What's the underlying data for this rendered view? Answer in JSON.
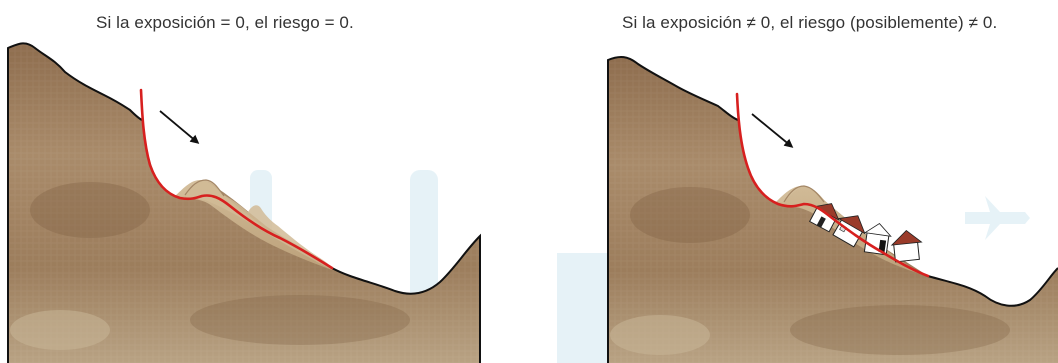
{
  "captions": {
    "left": "Si la exposición = 0, el riesgo = 0.",
    "right": "Si la exposición ≠ 0, el riesgo (posiblemente) ≠ 0."
  },
  "colors": {
    "soil_dark": "#8a6a4c",
    "soil_light": "#b9a587",
    "landslide_deposit": "#c6b08e",
    "failure_surface": "#d7201f",
    "outline": "#111111",
    "roof": "#9a3b2a",
    "watermark": "#dbeef5"
  },
  "icons": {
    "arrow": "movement-arrow-icon",
    "house": "house-icon"
  }
}
